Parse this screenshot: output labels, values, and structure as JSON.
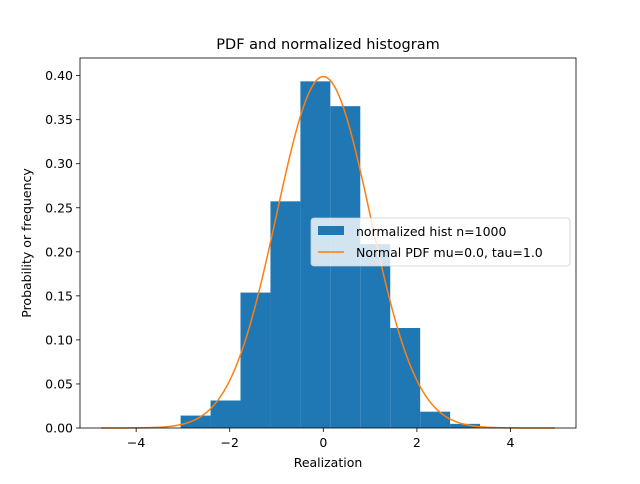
{
  "chart_data": {
    "type": "bar",
    "title": "PDF and normalized histogram",
    "xlabel": "Realization",
    "ylabel": "Probability or frequency",
    "xlim": [
      -5.2,
      5.4
    ],
    "ylim": [
      0.0,
      0.42
    ],
    "x_ticks": [
      -4,
      -2,
      0,
      2,
      4
    ],
    "x_tick_labels": [
      "−4",
      "−2",
      "0",
      "2",
      "4"
    ],
    "y_ticks": [
      0.0,
      0.05,
      0.1,
      0.15,
      0.2,
      0.25,
      0.3,
      0.35,
      0.4
    ],
    "y_tick_labels": [
      "0.00",
      "0.05",
      "0.10",
      "0.15",
      "0.20",
      "0.25",
      "0.30",
      "0.35",
      "0.40"
    ],
    "grid": false,
    "legend_position": "center-right",
    "series": [
      {
        "name": "normalized hist n=1000",
        "kind": "histogram",
        "color": "#1f77b4",
        "bin_edges": [
          -3.05,
          -2.41,
          -1.77,
          -1.13,
          -0.49,
          0.15,
          0.79,
          1.43,
          2.07,
          2.71,
          3.35
        ],
        "values": [
          0.0141,
          0.0312,
          0.1537,
          0.2573,
          0.3935,
          0.3653,
          0.2087,
          0.1135,
          0.0185,
          0.0047
        ]
      },
      {
        "name": "Normal PDF mu=0.0, tau=1.0",
        "kind": "line",
        "color": "#ff7f0e",
        "mu": 0.0,
        "sigma": 1.0,
        "x_range": [
          -4.75,
          4.95
        ]
      }
    ]
  }
}
